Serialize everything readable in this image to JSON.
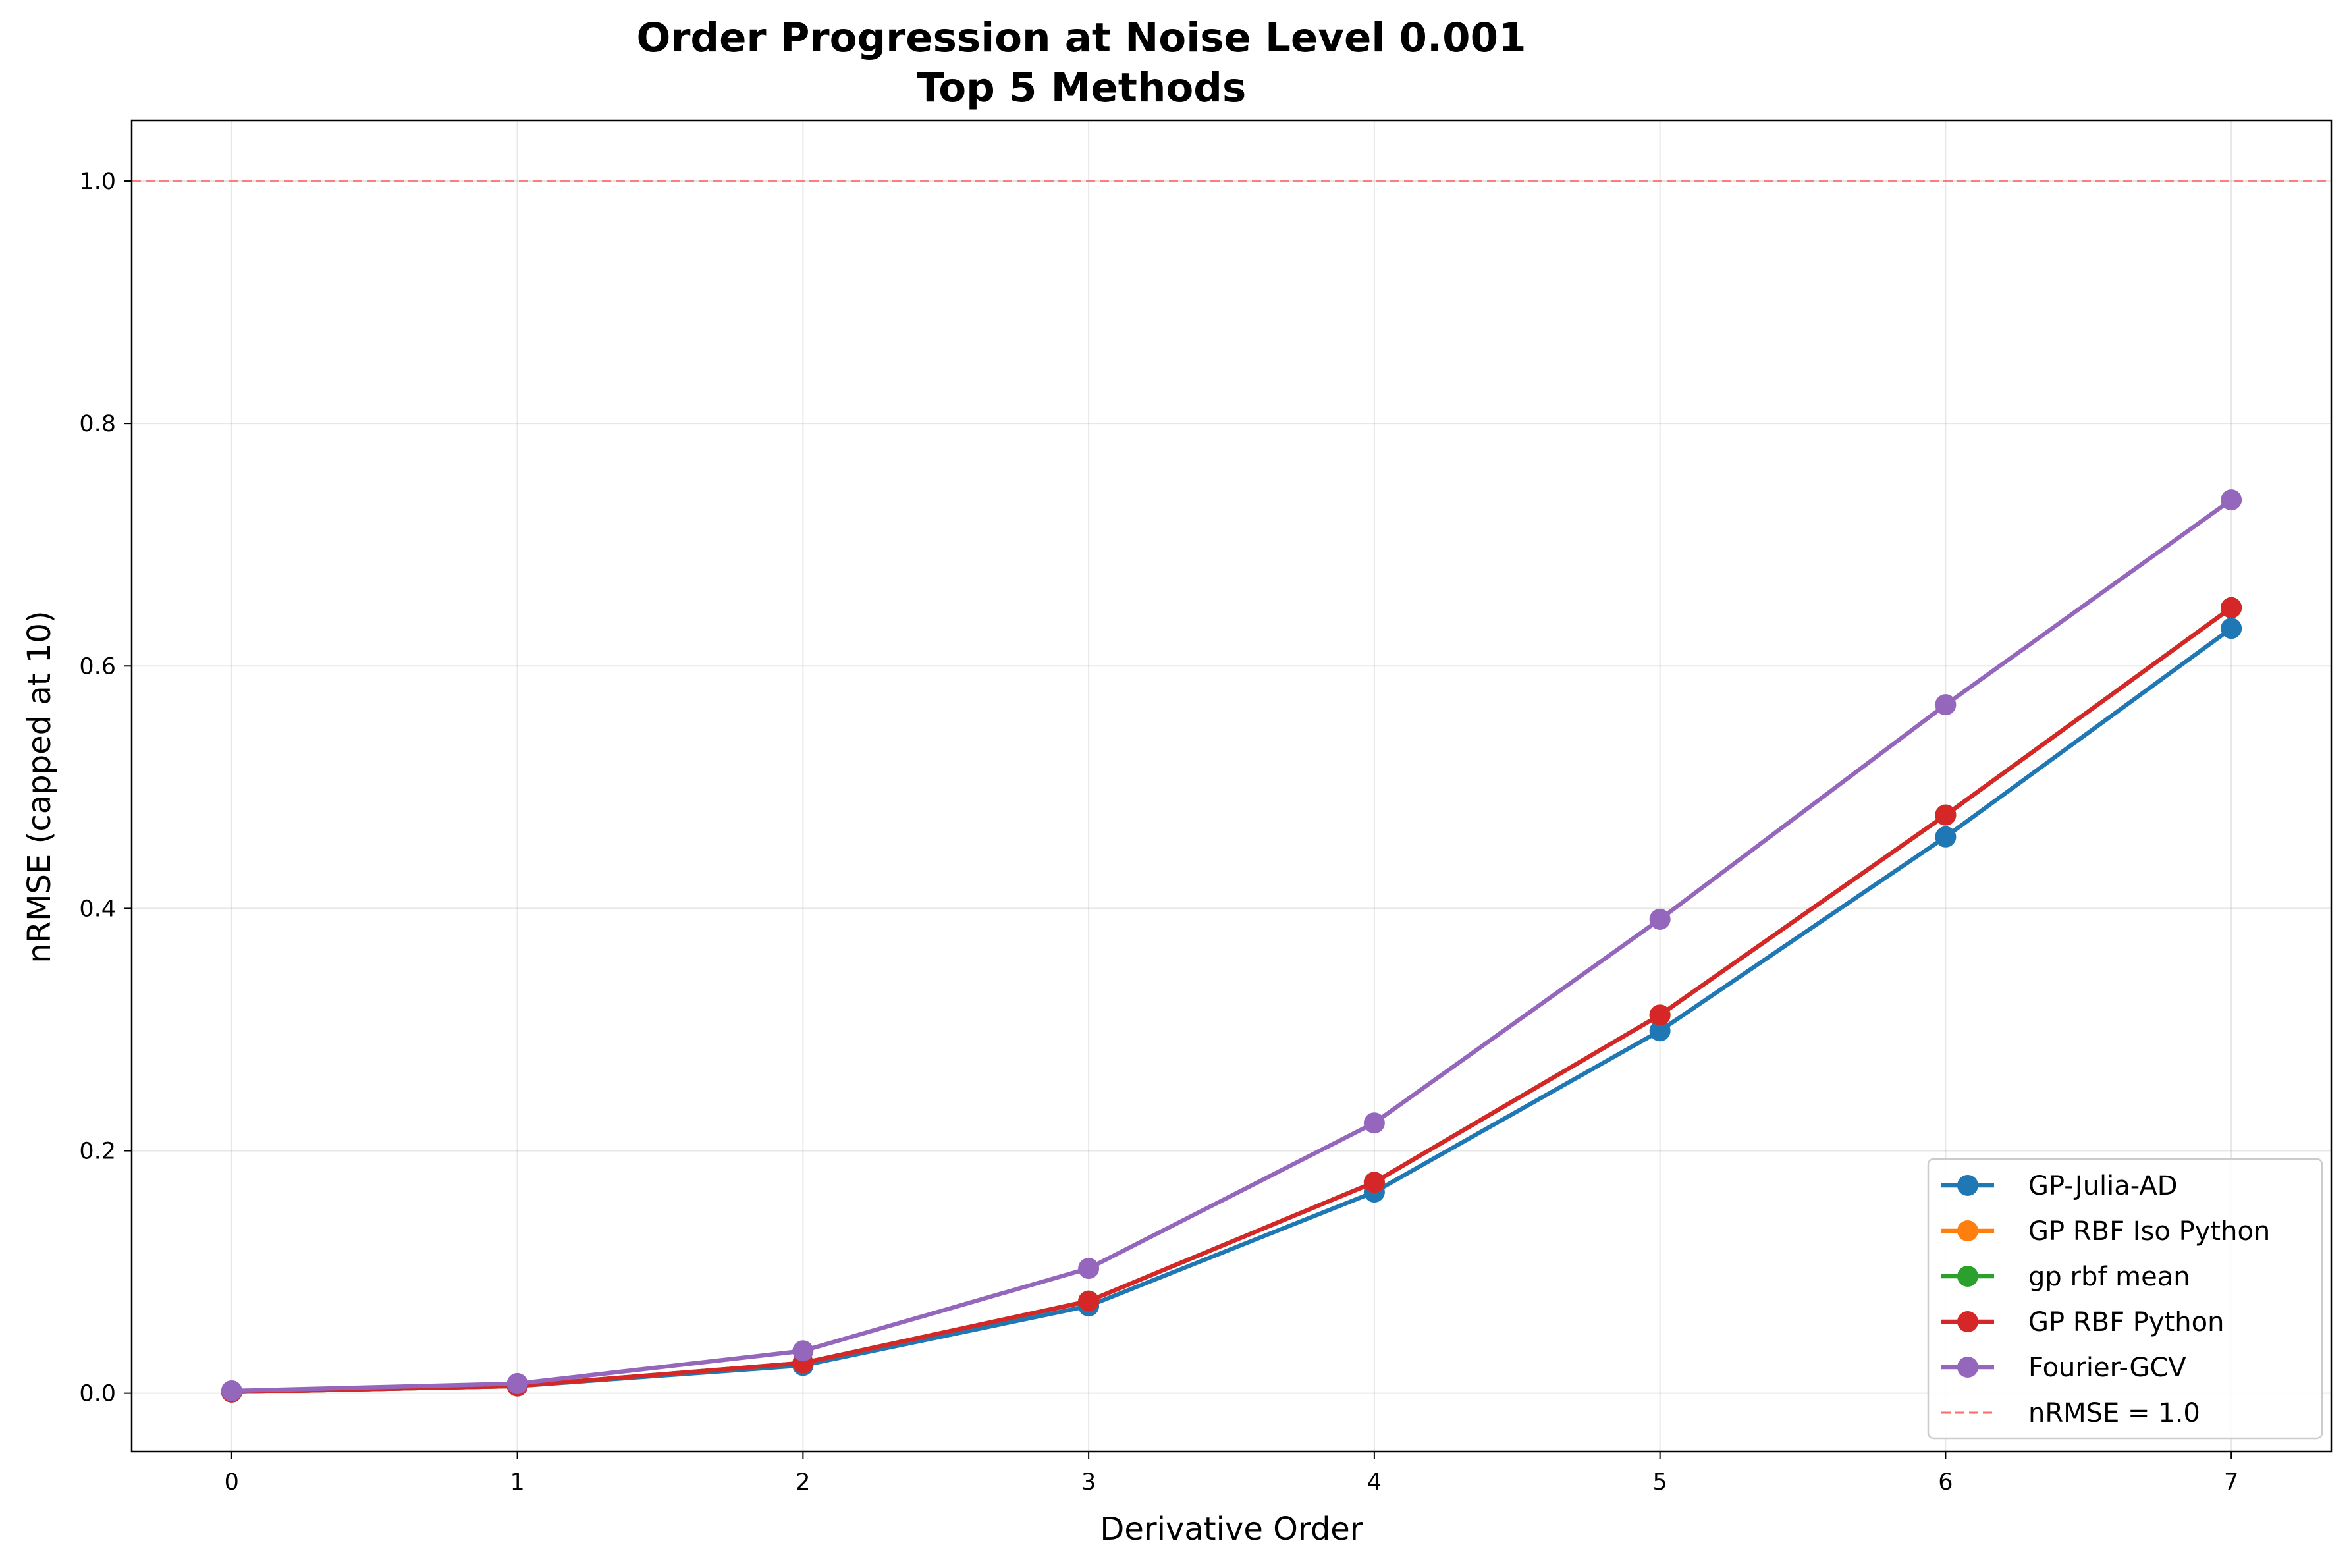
{
  "chart_data": {
    "type": "line",
    "title": "Order Progression at Noise Level 0.001",
    "subtitle": "Top 5 Methods",
    "xlabel": "Derivative Order",
    "ylabel": "nRMSE (capped at 10)",
    "xlim": [
      -0.35,
      7.35
    ],
    "ylim": [
      -0.048,
      1.05
    ],
    "x_ticks": [
      "0",
      "1",
      "2",
      "3",
      "4",
      "5",
      "6",
      "7"
    ],
    "y_ticks": [
      "0.0",
      "0.2",
      "0.4",
      "0.6",
      "0.8",
      "1.0"
    ],
    "grid": true,
    "legend_position": "lower right",
    "x": [
      0,
      1,
      2,
      3,
      4,
      5,
      6,
      7
    ],
    "series": [
      {
        "name": "GP-Julia-AD",
        "color": "#1f77b4",
        "values": [
          0.001,
          0.006,
          0.023,
          0.072,
          0.166,
          0.299,
          0.459,
          0.631
        ]
      },
      {
        "name": "GP RBF Iso Python",
        "color": "#ff7f0e",
        "values": [
          0.001,
          0.006,
          0.025,
          0.076,
          0.174,
          0.312,
          0.477,
          0.648
        ]
      },
      {
        "name": "gp rbf mean",
        "color": "#2ca02c",
        "values": [
          0.001,
          0.006,
          0.025,
          0.076,
          0.174,
          0.312,
          0.477,
          0.648
        ]
      },
      {
        "name": "GP RBF Python",
        "color": "#d62728",
        "values": [
          0.001,
          0.006,
          0.025,
          0.076,
          0.174,
          0.312,
          0.477,
          0.648
        ]
      },
      {
        "name": "Fourier-GCV",
        "color": "#9467bd",
        "values": [
          0.002,
          0.008,
          0.035,
          0.103,
          0.223,
          0.391,
          0.568,
          0.737
        ]
      }
    ],
    "reference_line": {
      "name": "nRMSE = 1.0",
      "value": 1.0,
      "color": "#ff6b6b",
      "style": "dashed"
    }
  }
}
